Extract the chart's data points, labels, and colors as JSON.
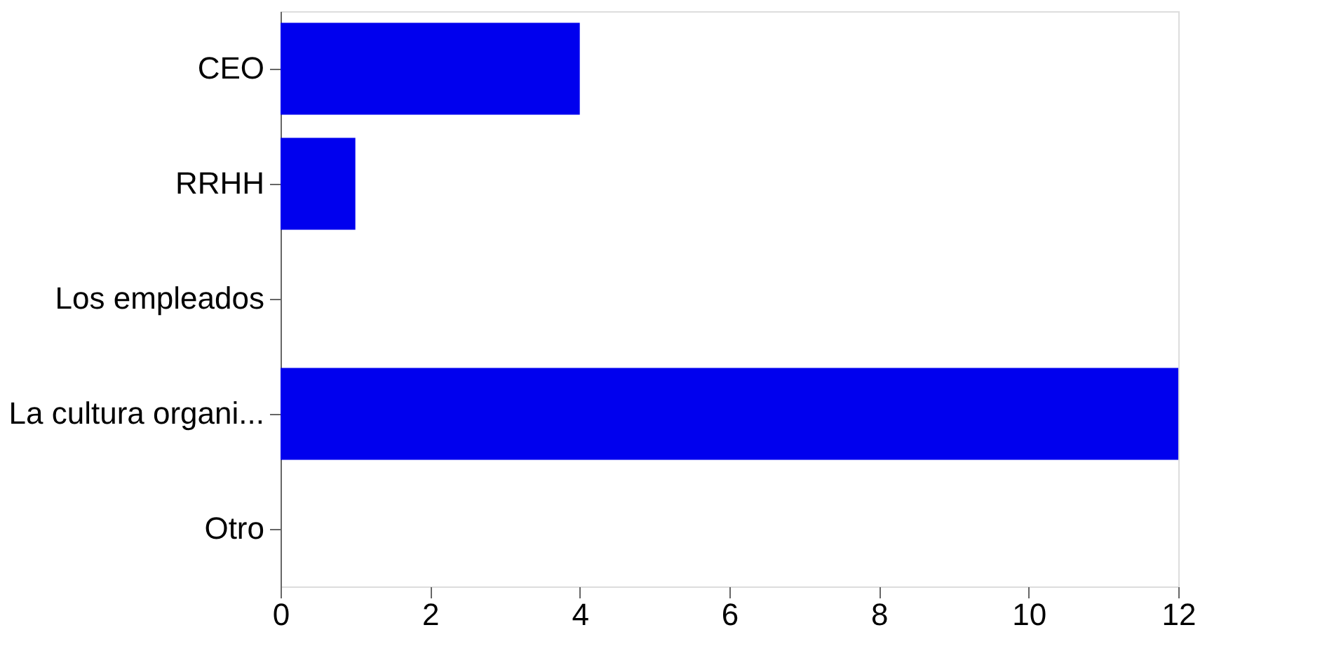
{
  "chart_data": {
    "type": "bar",
    "orientation": "horizontal",
    "categories": [
      "CEO",
      "RRHH",
      "Los empleados",
      "La cultura organi...",
      "Otro"
    ],
    "values": [
      4,
      1,
      0,
      12,
      0
    ],
    "color": "#0000ee",
    "xlim": [
      0,
      12
    ],
    "xticks": [
      0,
      2,
      4,
      6,
      8,
      10,
      12
    ],
    "grid": false
  }
}
